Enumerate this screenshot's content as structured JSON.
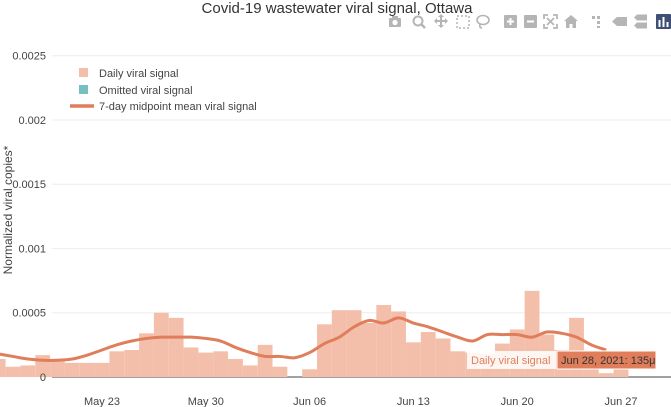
{
  "chart_data": {
    "type": "bar",
    "title": "Covid-19 wastewater viral signal, Ottawa",
    "ylabel": "Normalized viral copies*",
    "xlabel": "",
    "ylim": [
      0,
      0.0027
    ],
    "y_ticks": [
      0,
      0.0005,
      0.001,
      0.0015,
      0.002,
      0.0025
    ],
    "y_tick_labels": [
      "0",
      "0.0005",
      "0.001",
      "0.0015",
      "0.002",
      "0.0025"
    ],
    "x_range": [
      "2021-05-16",
      "2021-06-27"
    ],
    "x_ticks": [
      "2021-05-23",
      "2021-05-30",
      "2021-06-06",
      "2021-06-13",
      "2021-06-20",
      "2021-06-27"
    ],
    "x_tick_labels": [
      "May 23",
      "May 30",
      "Jun 06",
      "Jun 13",
      "Jun 20",
      "Jun 27"
    ],
    "legend_position": "top-left",
    "grid": true,
    "colors": {
      "daily": "#f4bfaa",
      "omitted": "#76c0c1",
      "mean_line": "#e07d5a"
    },
    "series": [
      {
        "name": "Daily viral signal",
        "kind": "bar",
        "x": [
          "2021-05-16",
          "2021-05-17",
          "2021-05-18",
          "2021-05-19",
          "2021-05-20",
          "2021-05-21",
          "2021-05-22",
          "2021-05-23",
          "2021-05-24",
          "2021-05-25",
          "2021-05-26",
          "2021-05-27",
          "2021-05-28",
          "2021-05-29",
          "2021-05-30",
          "2021-05-31",
          "2021-06-01",
          "2021-06-02",
          "2021-06-03",
          "2021-06-04",
          "2021-06-06",
          "2021-06-07",
          "2021-06-08",
          "2021-06-09",
          "2021-06-10",
          "2021-06-11",
          "2021-06-12",
          "2021-06-13",
          "2021-06-14",
          "2021-06-15",
          "2021-06-16",
          "2021-06-17",
          "2021-06-18",
          "2021-06-19",
          "2021-06-20",
          "2021-06-21",
          "2021-06-22",
          "2021-06-23",
          "2021-06-24",
          "2021-06-25",
          "2021-06-26",
          "2021-06-27"
        ],
        "values": [
          0.00014,
          8e-05,
          9e-05,
          0.00017,
          0.00012,
          0.00011,
          0.00011,
          0.00011,
          0.0002,
          0.00021,
          0.00034,
          0.0005,
          0.00046,
          0.00023,
          0.00019,
          0.0002,
          0.00014,
          9e-05,
          0.00025,
          8e-05,
          6e-05,
          0.00041,
          0.00052,
          0.00052,
          0.00042,
          0.00056,
          0.00051,
          0.00027,
          0.00035,
          0.0003,
          0.0002,
          0.00019,
          0.00018,
          0.00026,
          0.00037,
          0.00067,
          0.00033,
          0.00021,
          0.00046,
          0.00012,
          3e-05,
          0.00013
        ]
      },
      {
        "name": "Omitted viral signal",
        "kind": "bar",
        "x": [],
        "values": []
      },
      {
        "name": "7-day midpoint mean viral signal",
        "kind": "line",
        "x": [
          "2021-05-16",
          "2021-05-17",
          "2021-05-18",
          "2021-05-19",
          "2021-05-20",
          "2021-05-21",
          "2021-05-22",
          "2021-05-23",
          "2021-05-24",
          "2021-05-25",
          "2021-05-26",
          "2021-05-27",
          "2021-05-28",
          "2021-05-29",
          "2021-05-30",
          "2021-05-31",
          "2021-06-01",
          "2021-06-02",
          "2021-06-03",
          "2021-06-04",
          "2021-06-05",
          "2021-06-06",
          "2021-06-07",
          "2021-06-08",
          "2021-06-09",
          "2021-06-10",
          "2021-06-11",
          "2021-06-12",
          "2021-06-13",
          "2021-06-14",
          "2021-06-15",
          "2021-06-16",
          "2021-06-17",
          "2021-06-18",
          "2021-06-19",
          "2021-06-20",
          "2021-06-21",
          "2021-06-22",
          "2021-06-23",
          "2021-06-24",
          "2021-06-25",
          "2021-06-26"
        ],
        "values": [
          0.00018,
          0.00016,
          0.00014,
          0.00013,
          0.00013,
          0.00014,
          0.00017,
          0.00021,
          0.00025,
          0.00028,
          0.0003,
          0.00031,
          0.00031,
          0.00031,
          0.0003,
          0.00028,
          0.00023,
          0.00019,
          0.00016,
          0.00016,
          0.00015,
          0.00019,
          0.00026,
          0.00031,
          0.00039,
          0.00044,
          0.00042,
          0.00046,
          0.00042,
          0.00039,
          0.00035,
          0.00031,
          0.00028,
          0.00033,
          0.00033,
          0.00033,
          0.00031,
          0.00035,
          0.00034,
          0.00031,
          0.00025,
          0.00021
        ]
      }
    ],
    "hover": {
      "label": "Daily viral signal",
      "value": "Jun 28, 2021: 135μ"
    }
  },
  "modebar": {
    "buttons": [
      "camera-icon",
      "zoom-icon",
      "pan-icon",
      "box-select-icon",
      "lasso-icon",
      "zoom-in-icon",
      "zoom-out-icon",
      "autoscale-icon",
      "reset-axes-icon",
      "spike-lines-icon",
      "hover-closest-icon",
      "hover-compare-icon",
      "plotly-logo-icon"
    ]
  }
}
